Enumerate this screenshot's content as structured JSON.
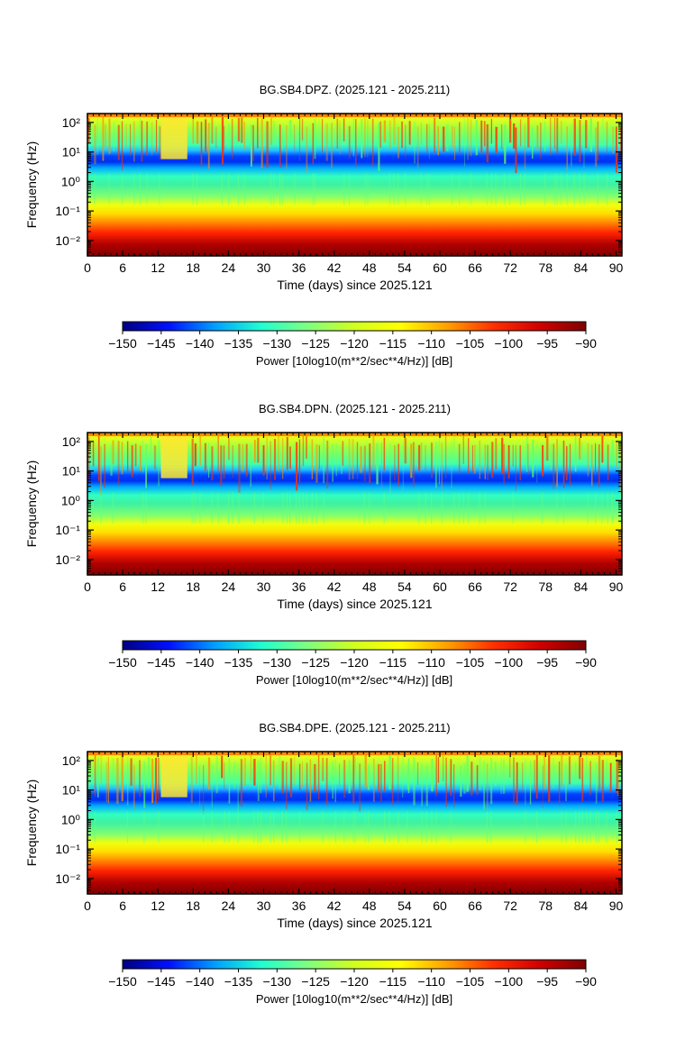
{
  "figure": {
    "colorbar": {
      "label": "Power [10log10(m**2/sec**4/Hz)] [dB]",
      "min": -150,
      "max": -90,
      "ticks": [
        -150,
        -145,
        -140,
        -135,
        -130,
        -125,
        -120,
        -115,
        -110,
        -105,
        -100,
        -95,
        -90
      ],
      "colormap": [
        "#00007f",
        "#0010ff",
        "#00a0ff",
        "#20ffd0",
        "#7fff7f",
        "#d0ff20",
        "#ffff00",
        "#ffa000",
        "#ff3000",
        "#d00000",
        "#7f0000"
      ]
    }
  },
  "chart_data": [
    {
      "type": "heatmap",
      "title": "BG.SB4.DPZ. (2025.121 - 2025.211)",
      "xlabel": "Time (days) since 2025.121",
      "ylabel": "Frequency (Hz)",
      "x_ticks": [
        0,
        6,
        12,
        18,
        24,
        30,
        36,
        42,
        48,
        54,
        60,
        66,
        72,
        78,
        84,
        90
      ],
      "xlim": [
        0,
        91
      ],
      "y_scale": "log",
      "y_ticks": [
        {
          "value": 0.01,
          "label": "10⁻²"
        },
        {
          "value": 0.1,
          "label": "10⁻¹"
        },
        {
          "value": 1,
          "label": "10⁰"
        },
        {
          "value": 10,
          "label": "10¹"
        },
        {
          "value": 100,
          "label": "10²"
        }
      ],
      "ylim": [
        0.003,
        200
      ]
    },
    {
      "type": "heatmap",
      "title": "BG.SB4.DPN. (2025.121 - 2025.211)",
      "xlabel": "Time (days) since 2025.121",
      "ylabel": "Frequency (Hz)",
      "x_ticks": [
        0,
        6,
        12,
        18,
        24,
        30,
        36,
        42,
        48,
        54,
        60,
        66,
        72,
        78,
        84,
        90
      ],
      "xlim": [
        0,
        91
      ],
      "y_scale": "log",
      "y_ticks": [
        {
          "value": 0.01,
          "label": "10⁻²"
        },
        {
          "value": 0.1,
          "label": "10⁻¹"
        },
        {
          "value": 1,
          "label": "10⁰"
        },
        {
          "value": 10,
          "label": "10¹"
        },
        {
          "value": 100,
          "label": "10²"
        }
      ],
      "ylim": [
        0.003,
        200
      ]
    },
    {
      "type": "heatmap",
      "title": "BG.SB4.DPE. (2025.121 - 2025.211)",
      "xlabel": "Time (days) since 2025.121",
      "ylabel": "Frequency (Hz)",
      "x_ticks": [
        0,
        6,
        12,
        18,
        24,
        30,
        36,
        42,
        48,
        54,
        60,
        66,
        72,
        78,
        84,
        90
      ],
      "xlim": [
        0,
        91
      ],
      "y_scale": "log",
      "y_ticks": [
        {
          "value": 0.01,
          "label": "10⁻²"
        },
        {
          "value": 0.1,
          "label": "10⁻¹"
        },
        {
          "value": 1,
          "label": "10⁰"
        },
        {
          "value": 10,
          "label": "10¹"
        },
        {
          "value": 100,
          "label": "10²"
        }
      ],
      "ylim": [
        0.003,
        200
      ]
    }
  ]
}
